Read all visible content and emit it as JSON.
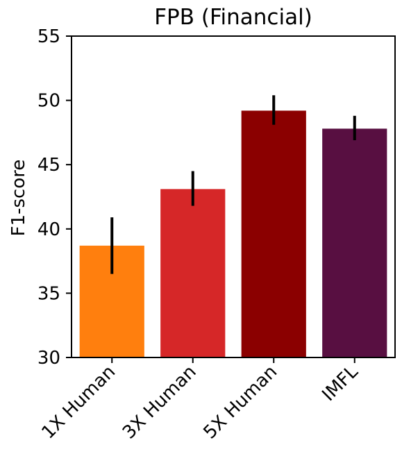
{
  "chart_data": {
    "type": "bar",
    "title": "FPB (Financial)",
    "xlabel": "",
    "ylabel": "F1-score",
    "categories": [
      "1X Human",
      "3X Human",
      "5X Human",
      "IMFL"
    ],
    "values": [
      38.7,
      43.1,
      49.2,
      47.8
    ],
    "errors": [
      [
        36.5,
        40.9
      ],
      [
        41.8,
        44.5
      ],
      [
        48.1,
        50.4
      ],
      [
        46.9,
        48.8
      ]
    ],
    "colors": [
      "#ff7f0e",
      "#d62728",
      "#8b0000",
      "#580f41"
    ],
    "ylim": [
      30,
      55
    ],
    "yticks": [
      30,
      35,
      40,
      45,
      50,
      55
    ],
    "grid": false,
    "legend": "none"
  }
}
